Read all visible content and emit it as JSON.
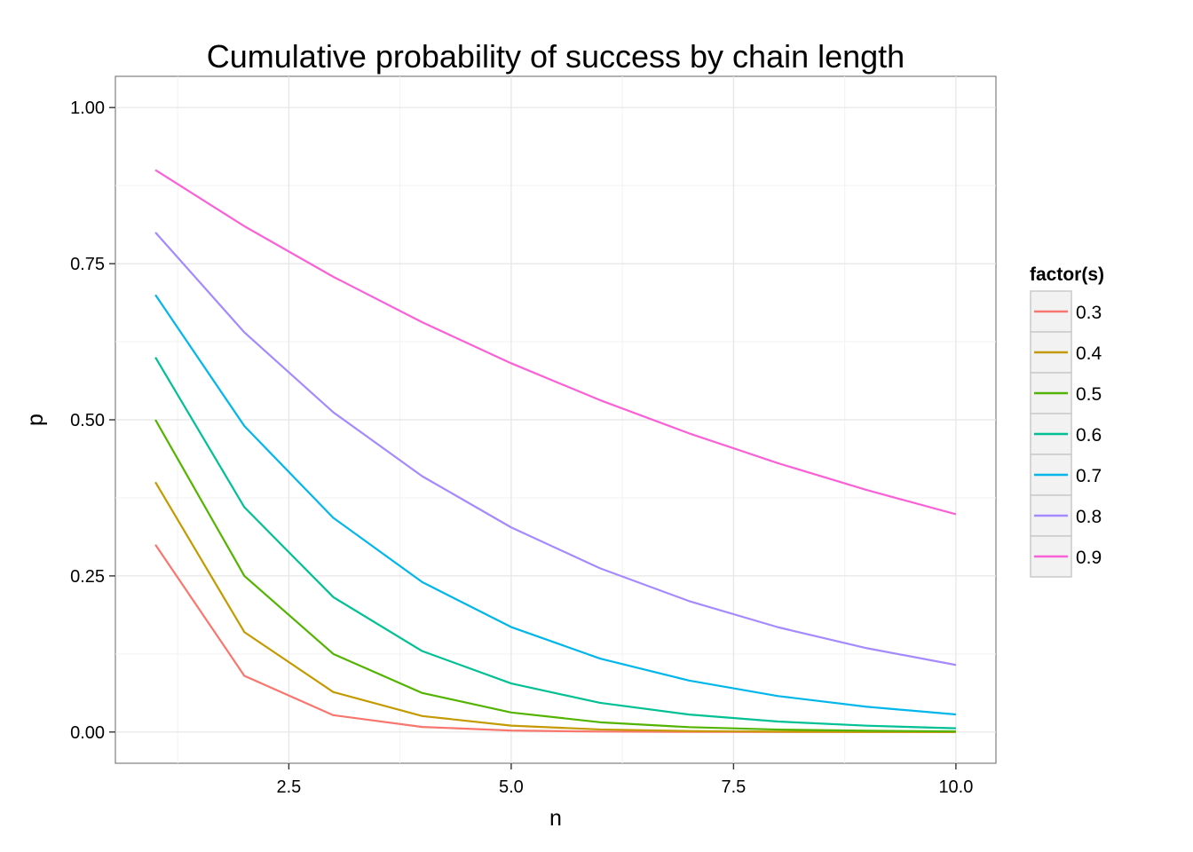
{
  "chart_data": {
    "type": "line",
    "title": "Cumulative probability of success by chain length",
    "xlabel": "n",
    "ylabel": "p",
    "xlim": [
      0.55,
      10.45
    ],
    "ylim": [
      -0.05,
      1.05
    ],
    "x_ticks": [
      2.5,
      5.0,
      7.5,
      10.0
    ],
    "x_tick_labels": [
      "2.5",
      "5.0",
      "7.5",
      "10.0"
    ],
    "y_ticks": [
      0.0,
      0.25,
      0.5,
      0.75,
      1.0
    ],
    "y_tick_labels": [
      "0.00",
      "0.25",
      "0.50",
      "0.75",
      "1.00"
    ],
    "grid": true,
    "legend_position": "right",
    "legend_title": "factor(s)",
    "x": [
      1,
      2,
      3,
      4,
      5,
      6,
      7,
      8,
      9,
      10
    ],
    "series": [
      {
        "name": "0.3",
        "color": "#F8766D",
        "values": [
          0.3,
          0.09,
          0.027,
          0.0081,
          0.0024,
          0.0007,
          0.0002,
          0.0001,
          0.0,
          0.0
        ]
      },
      {
        "name": "0.4",
        "color": "#C49A00",
        "values": [
          0.4,
          0.16,
          0.064,
          0.0256,
          0.0102,
          0.0041,
          0.0016,
          0.0007,
          0.0003,
          0.0001
        ]
      },
      {
        "name": "0.5",
        "color": "#53B400",
        "values": [
          0.5,
          0.25,
          0.125,
          0.0625,
          0.0313,
          0.0156,
          0.0078,
          0.0039,
          0.002,
          0.001
        ]
      },
      {
        "name": "0.6",
        "color": "#00C094",
        "values": [
          0.6,
          0.36,
          0.216,
          0.1296,
          0.0778,
          0.0467,
          0.028,
          0.0168,
          0.0101,
          0.006
        ]
      },
      {
        "name": "0.7",
        "color": "#00B6EB",
        "values": [
          0.7,
          0.49,
          0.343,
          0.2401,
          0.1681,
          0.1176,
          0.0824,
          0.0576,
          0.0404,
          0.0282
        ]
      },
      {
        "name": "0.8",
        "color": "#A58AFF",
        "values": [
          0.8,
          0.64,
          0.512,
          0.4096,
          0.3277,
          0.2621,
          0.2097,
          0.1678,
          0.1342,
          0.1074
        ]
      },
      {
        "name": "0.9",
        "color": "#FB61D7",
        "values": [
          0.9,
          0.81,
          0.729,
          0.6561,
          0.5905,
          0.5314,
          0.4783,
          0.4305,
          0.3874,
          0.3487
        ]
      }
    ]
  }
}
